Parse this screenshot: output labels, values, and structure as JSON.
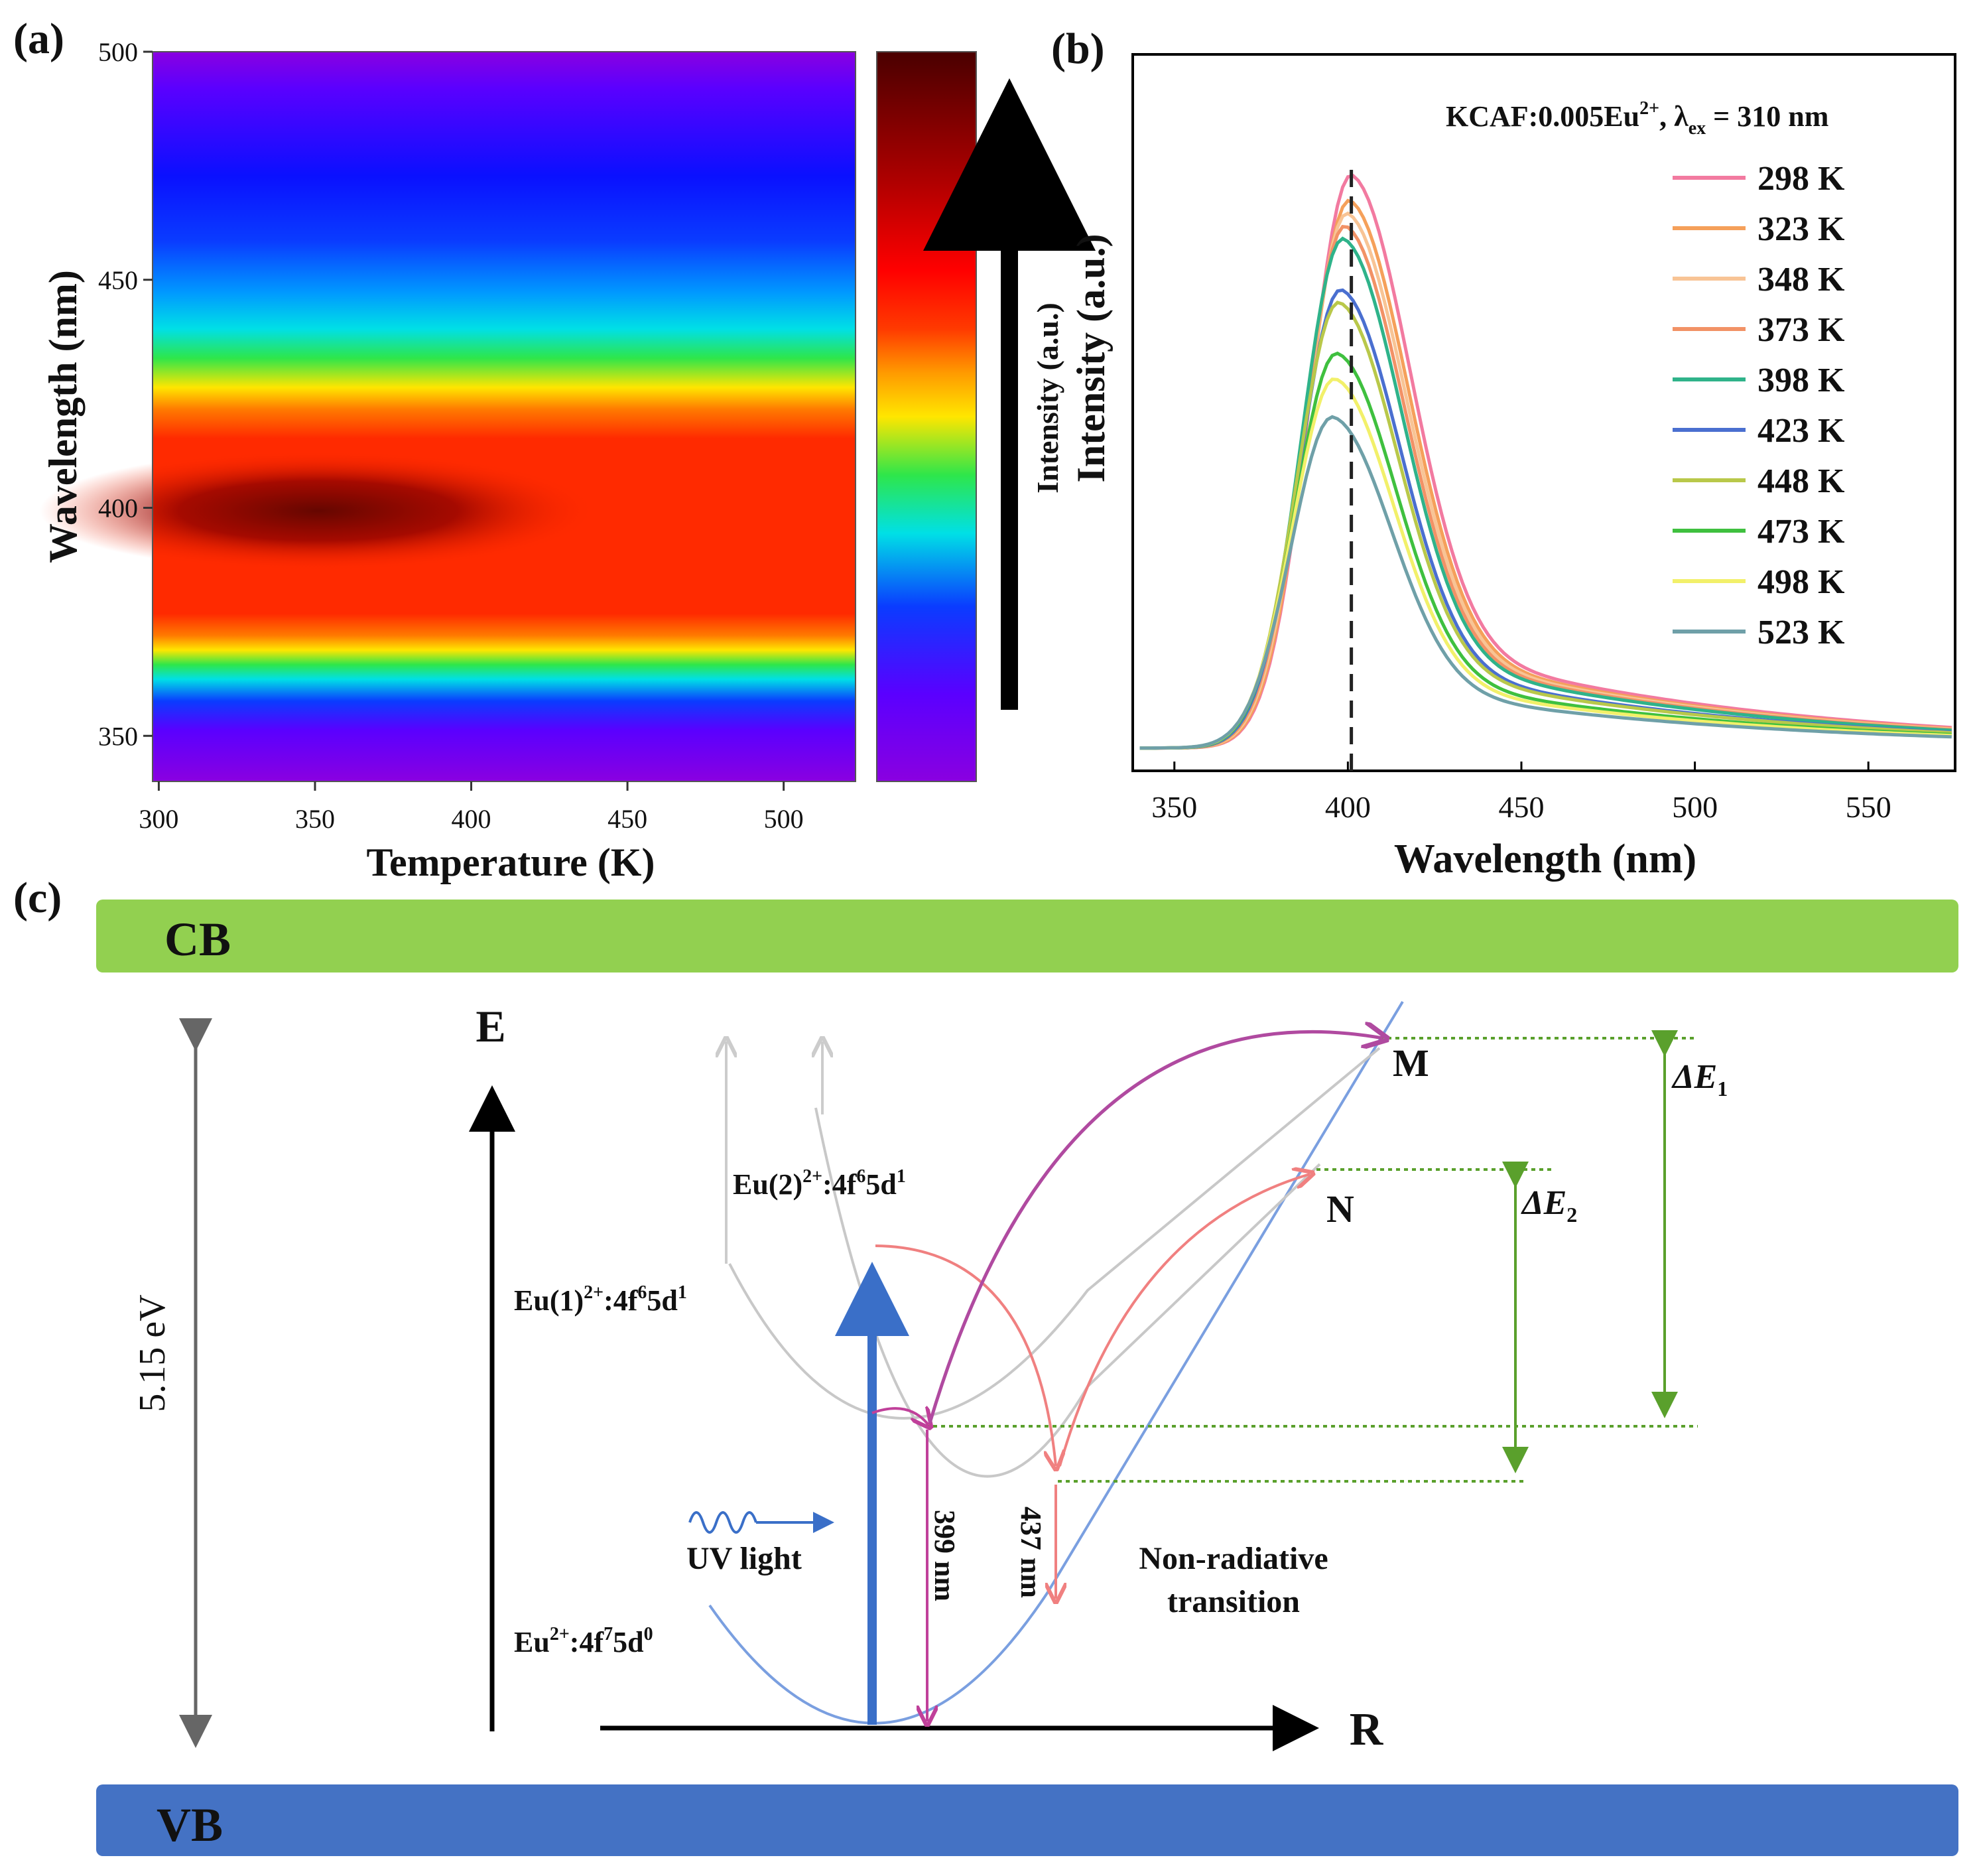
{
  "chart_data": [
    {
      "panel": "(a)",
      "type": "heatmap",
      "xlabel": "Temperature (K)",
      "ylabel": "Wavelength (nm)",
      "x_ticks": [
        "300",
        "350",
        "400",
        "450",
        "500"
      ],
      "y_ticks": [
        "500",
        "450",
        "400",
        "350"
      ],
      "xlim": [
        298,
        523
      ],
      "ylim": [
        340,
        500
      ],
      "colorbar_label": "Intensity (a.u.)",
      "colormap": [
        "#ff2a00",
        "#ff7a00",
        "#ffe600",
        "#2ee64a",
        "#00e0e6",
        "#0a3cff",
        "#5a00ff",
        "#8a00e0"
      ],
      "peak_color": "#5a0000",
      "description_values": {
        "peak_wavelength_nm": 399
      }
    },
    {
      "panel": "(b)",
      "type": "line",
      "title": "KCAF:0.005Eu",
      "title_sup": "2+",
      "title_tail": ", λ",
      "title_sub": "ex",
      "title_end": " = 310 nm",
      "xlabel": "Wavelength (nm)",
      "ylabel": "Intensity (a.u.)",
      "xlim": [
        338,
        575
      ],
      "x_ticks": [
        "350",
        "400",
        "450",
        "500",
        "550"
      ],
      "peak_marker_nm": 401,
      "series": [
        {
          "name": "298 K",
          "color": "#f27aa0",
          "peak": 0.9
        },
        {
          "name": "323 K",
          "color": "#f5a05a",
          "peak": 0.86
        },
        {
          "name": "348 K",
          "color": "#f8c495",
          "peak": 0.84
        },
        {
          "name": "373 K",
          "color": "#f29266",
          "peak": 0.82
        },
        {
          "name": "398 K",
          "color": "#2fb38a",
          "peak": 0.8
        },
        {
          "name": "423 K",
          "color": "#4a6fd0",
          "peak": 0.72
        },
        {
          "name": "448 K",
          "color": "#b9c84a",
          "peak": 0.7
        },
        {
          "name": "473 K",
          "color": "#3fc03f",
          "peak": 0.62
        },
        {
          "name": "498 K",
          "color": "#f2f06a",
          "peak": 0.58
        },
        {
          "name": "523 K",
          "color": "#6fa0a8",
          "peak": 0.52
        }
      ]
    }
  ],
  "diagram": {
    "panel": "(c)",
    "cb_label": "CB",
    "vb_label": "VB",
    "gap_label": "5.15 eV",
    "e_axis_label": "E",
    "r_axis_label": "R",
    "eu2_state": "Eu(2)",
    "eu2_sup": "2+",
    "eu2_tail": ":4f",
    "eu2_sup2": "6",
    "eu2_end": "5d",
    "eu2_sup3": "1",
    "eu1_state": "Eu(1)",
    "eu1_sup": "2+",
    "eu1_tail": ":4f",
    "eu1_sup2": "6",
    "eu1_end": "5d",
    "eu1_sup3": "1",
    "ground_state": "Eu",
    "ground_sup": "2+",
    "ground_tail": ":4f",
    "ground_sup2": "7",
    "ground_end": "5d",
    "ground_sup3": "0",
    "uv_label": "UV light",
    "emission1": "399 nm",
    "emission2": "437 nm",
    "nonrad_line1": "Non-radiative",
    "nonrad_line2": "transition",
    "point_m": "M",
    "point_n": "N",
    "de1": "ΔE",
    "de1_sub": "1",
    "de2": "ΔE",
    "de2_sub": "2",
    "cb_color": "#92d050",
    "vb_color": "#4472c4"
  }
}
